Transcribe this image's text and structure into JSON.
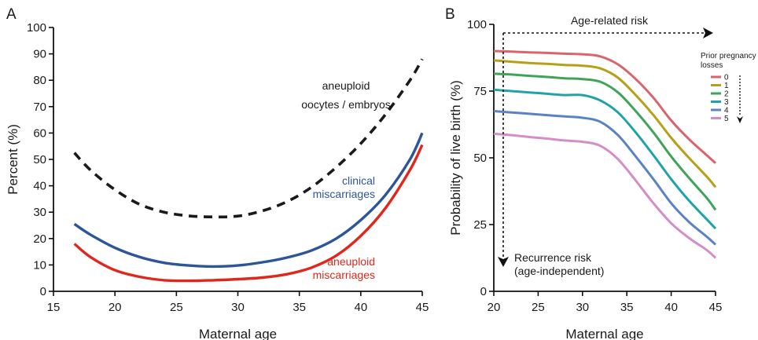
{
  "chart_data": [
    {
      "panel": "A",
      "type": "line",
      "title": "",
      "xlabel": "Maternal age",
      "ylabel": "Percent (%)",
      "xlim": [
        15,
        45
      ],
      "ylim": [
        0,
        100
      ],
      "xticks": [
        15,
        20,
        25,
        30,
        35,
        40,
        45
      ],
      "yticks": [
        0,
        10,
        20,
        30,
        40,
        50,
        60,
        70,
        80,
        90,
        100
      ],
      "series": [
        {
          "label_lines": [
            "aneuploid",
            "oocytes / embryos"
          ],
          "color": "#1a1a1a",
          "dashed": true,
          "x": [
            16.7,
            18,
            20,
            22,
            24,
            26,
            28,
            30,
            32,
            34,
            36,
            38,
            40,
            42,
            44,
            45
          ],
          "y": [
            52.5,
            46,
            38.5,
            33,
            30,
            28.6,
            28.2,
            28.5,
            30.5,
            34,
            39.5,
            47,
            56,
            67,
            80,
            88
          ]
        },
        {
          "label_lines": [
            "clinical",
            "miscarriages"
          ],
          "color": "#2d5599",
          "dashed": false,
          "x": [
            16.7,
            18,
            20,
            22,
            24,
            26,
            28,
            30,
            32,
            34,
            36,
            38,
            40,
            42,
            44,
            45
          ],
          "y": [
            25.5,
            21.5,
            16.5,
            13,
            10.8,
            9.8,
            9.4,
            9.8,
            11,
            12.8,
            15.5,
            20,
            27,
            36.5,
            50,
            60
          ]
        },
        {
          "label_lines": [
            "aneuploid",
            "miscarriages"
          ],
          "color": "#e0271b",
          "dashed": false,
          "x": [
            16.7,
            18,
            20,
            22,
            24,
            26,
            28,
            30,
            32,
            34,
            36,
            38,
            40,
            42,
            44,
            45
          ],
          "y": [
            18,
            13,
            8,
            5.5,
            4.2,
            4,
            4.2,
            4.6,
            5.2,
            6.5,
            9,
            13.5,
            21,
            31.5,
            46,
            55.5
          ]
        }
      ]
    },
    {
      "panel": "B",
      "type": "line",
      "title": "",
      "xlabel": "Maternal age",
      "ylabel": "Probability of live birth (%)",
      "xlim": [
        20,
        45
      ],
      "ylim": [
        0,
        100
      ],
      "xticks": [
        20,
        25,
        30,
        35,
        40,
        45
      ],
      "yticks": [
        0,
        25,
        50,
        75,
        100
      ],
      "annotations": {
        "age_related": "Age-related risk",
        "recurrence_lines": [
          "Recurrence risk",
          "(age-independent)"
        ]
      },
      "legend": {
        "title_lines": [
          "Prior pregnancy",
          "losses"
        ],
        "position": "right"
      },
      "series": [
        {
          "name": "0",
          "color": "#d9646b",
          "x": [
            20,
            22,
            24,
            26,
            28,
            30,
            32,
            34,
            36,
            38,
            40,
            42,
            44,
            45
          ],
          "y": [
            90,
            89.8,
            89.5,
            89.3,
            89,
            88.8,
            88,
            85,
            79.5,
            72.5,
            64,
            57,
            51,
            48
          ]
        },
        {
          "name": "1",
          "color": "#b5a017",
          "x": [
            20,
            22,
            24,
            26,
            28,
            30,
            32,
            34,
            36,
            38,
            40,
            42,
            44,
            45
          ],
          "y": [
            86.5,
            86,
            85.5,
            85.2,
            84.8,
            84.5,
            83.5,
            80,
            73.5,
            66,
            57.5,
            50,
            43,
            39
          ]
        },
        {
          "name": "2",
          "color": "#3ea457",
          "x": [
            20,
            22,
            24,
            26,
            28,
            30,
            32,
            34,
            36,
            38,
            40,
            42,
            44,
            45
          ],
          "y": [
            81.5,
            81.2,
            80.7,
            80.3,
            79.8,
            79.5,
            78.5,
            74.5,
            67.5,
            59.5,
            50.5,
            42.5,
            35,
            30.5
          ]
        },
        {
          "name": "3",
          "color": "#20a3a8",
          "x": [
            20,
            22,
            24,
            26,
            28,
            30,
            32,
            34,
            36,
            38,
            40,
            42,
            44,
            45
          ],
          "y": [
            75.5,
            75,
            74.5,
            74,
            73.5,
            73.5,
            71.5,
            67,
            59.5,
            51,
            42,
            34,
            27,
            23.5
          ]
        },
        {
          "name": "4",
          "color": "#5b82c4",
          "x": [
            20,
            22,
            24,
            26,
            28,
            30,
            32,
            34,
            36,
            38,
            40,
            42,
            44,
            45
          ],
          "y": [
            67.5,
            67,
            66.5,
            66,
            65.5,
            65,
            63.5,
            58.5,
            50.5,
            42,
            33,
            26,
            20.5,
            17.5
          ]
        },
        {
          "name": "5",
          "color": "#d68cc6",
          "x": [
            20,
            22,
            24,
            26,
            28,
            30,
            32,
            34,
            36,
            38,
            40,
            42,
            44,
            45
          ],
          "y": [
            59,
            58.5,
            57.8,
            57.2,
            56.5,
            56,
            54.5,
            49.5,
            41.5,
            33,
            25.5,
            20,
            15.5,
            12.5
          ]
        }
      ]
    }
  ]
}
